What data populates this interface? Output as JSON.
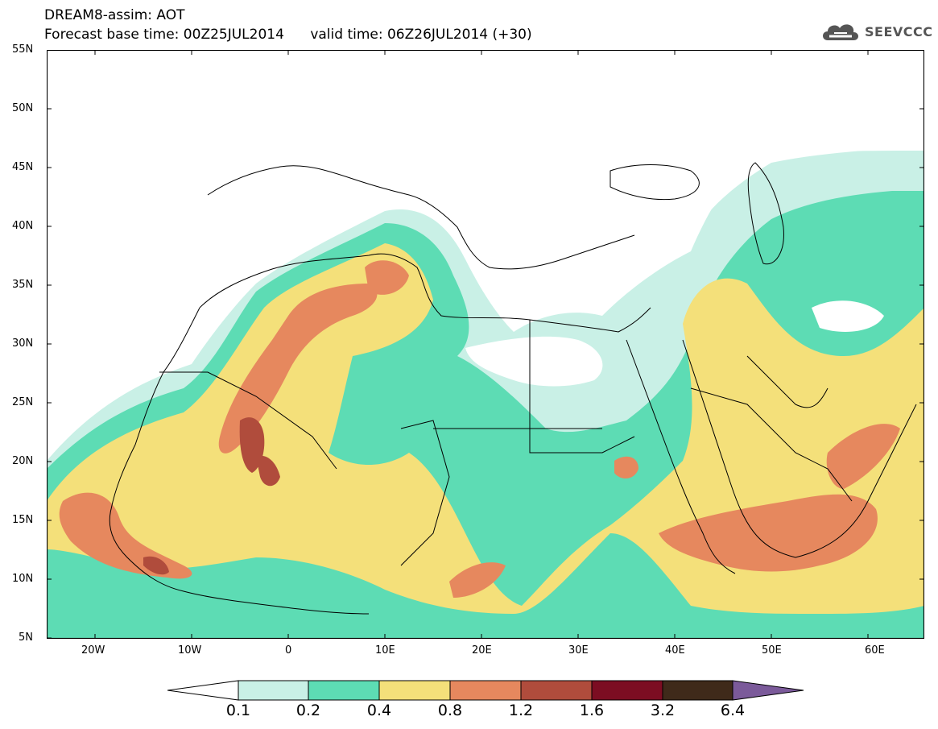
{
  "header": {
    "line1": "DREAM8-assim: AOT",
    "line2": "Forecast base time: 00Z25JUL2014      valid time: 06Z26JUL2014 (+30)"
  },
  "logo": {
    "text": "SEEVCCC",
    "icon": "cloud-icon"
  },
  "axes": {
    "lat_labels": [
      "55N",
      "50N",
      "45N",
      "40N",
      "35N",
      "30N",
      "25N",
      "20N",
      "15N",
      "10N",
      "5N"
    ],
    "lon_labels": [
      "20W",
      "10W",
      "0",
      "10E",
      "20E",
      "30E",
      "40E",
      "50E",
      "60E"
    ]
  },
  "legend": {
    "labels": [
      "0.1",
      "0.2",
      "0.4",
      "0.8",
      "1.2",
      "1.6",
      "3.2",
      "6.4"
    ],
    "colors": [
      "#ffffff",
      "#c9f0e6",
      "#5ddcb4",
      "#f4e07a",
      "#e6885e",
      "#b04c3c",
      "#7c0d22",
      "#3f2a1a",
      "#7b5a9a"
    ]
  },
  "colors": {
    "c1": "#c9f0e6",
    "c2": "#5ddcb4",
    "c3": "#f4e07a",
    "c4": "#e6885e",
    "c5": "#b04c3c"
  }
}
